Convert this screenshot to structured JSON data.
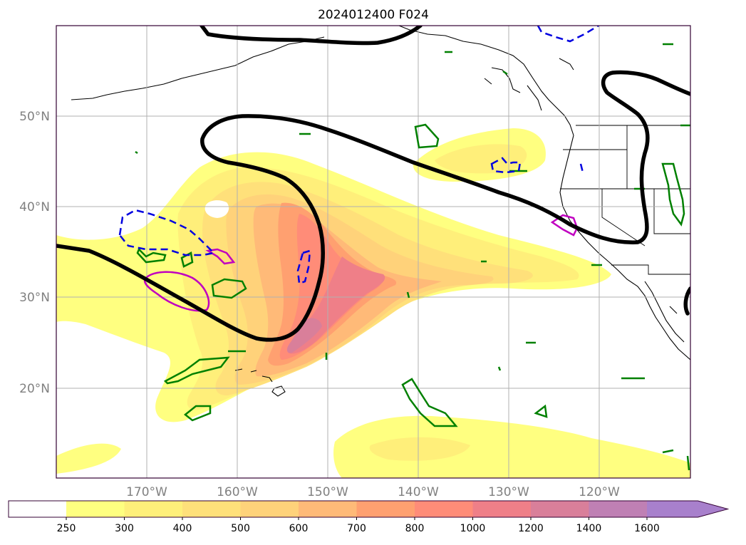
{
  "title": "2024012400 F024",
  "lat_labels": [
    "50°N",
    "40°N",
    "30°N",
    "20°N"
  ],
  "lon_labels": [
    "170°W",
    "160°W",
    "150°W",
    "140°W",
    "130°W",
    "120°W"
  ],
  "colorbar": {
    "ticks": [
      "250",
      "300",
      "400",
      "500",
      "600",
      "700",
      "800",
      "1000",
      "1200",
      "1400",
      "1600"
    ],
    "colors": [
      "#ffff80",
      "#ffef7a",
      "#ffe07a",
      "#ffd27a",
      "#ffba78",
      "#ffa070",
      "#ff8c78",
      "#ef7f88",
      "#d97f9a",
      "#bf80b4",
      "#a880cc"
    ],
    "extend": "max"
  },
  "map_data": {
    "lon_range": [
      -180,
      -110
    ],
    "lat_range": [
      10,
      60
    ],
    "grid": true,
    "layers": [
      {
        "type": "filled-contour",
        "color_key": "colorbar"
      },
      {
        "type": "contour",
        "style": "thick-black"
      },
      {
        "type": "contour",
        "style": "green-hatched"
      },
      {
        "type": "contour",
        "style": "magenta-hatched"
      },
      {
        "type": "contour",
        "style": "blue-dashed"
      }
    ]
  }
}
